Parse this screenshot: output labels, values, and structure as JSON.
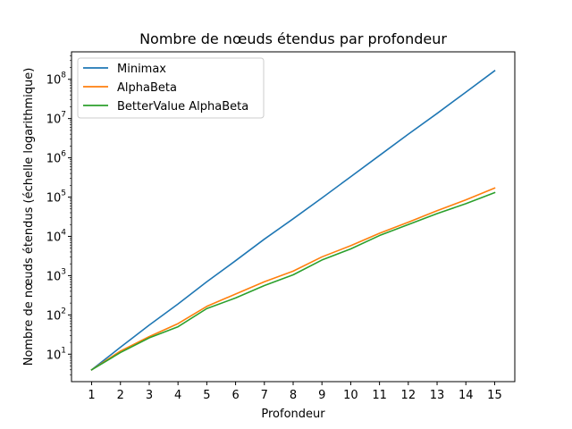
{
  "chart_data": {
    "type": "line",
    "title": "Nombre de nœuds étendus par profondeur",
    "xlabel": "Profondeur",
    "ylabel": "Nombre de nœuds étendus (échelle logarithmique)",
    "yscale": "log",
    "ylim": [
      2,
      500000000
    ],
    "xlim": [
      0.3,
      15.7
    ],
    "grid": false,
    "legend_position": "top-left",
    "x": [
      1,
      2,
      3,
      4,
      5,
      6,
      7,
      8,
      9,
      10,
      11,
      12,
      13,
      14,
      15
    ],
    "y_tick_labels": [
      {
        "base": "10",
        "exp": "1",
        "value": 10
      },
      {
        "base": "10",
        "exp": "2",
        "value": 100
      },
      {
        "base": "10",
        "exp": "3",
        "value": 1000
      },
      {
        "base": "10",
        "exp": "4",
        "value": 10000
      },
      {
        "base": "10",
        "exp": "5",
        "value": 100000
      },
      {
        "base": "10",
        "exp": "6",
        "value": 1000000
      },
      {
        "base": "10",
        "exp": "7",
        "value": 10000000
      },
      {
        "base": "10",
        "exp": "8",
        "value": 100000000
      }
    ],
    "series": [
      {
        "name": "Minimax",
        "color": "#1f77b4",
        "values": [
          4,
          15,
          55,
          190,
          700,
          2400,
          8500,
          28000,
          95000,
          330000,
          1150000,
          4000000,
          13500000,
          47000000,
          165000000
        ]
      },
      {
        "name": "AlphaBeta",
        "color": "#ff7f0e",
        "values": [
          4,
          12,
          28,
          60,
          165,
          340,
          700,
          1300,
          3000,
          5800,
          12000,
          23000,
          45000,
          85000,
          170000
        ]
      },
      {
        "name": "BetterValue AlphaBeta",
        "color": "#2ca02c",
        "values": [
          4,
          11,
          26,
          50,
          145,
          270,
          560,
          1050,
          2500,
          4800,
          10500,
          20000,
          38000,
          68000,
          130000
        ]
      }
    ]
  }
}
